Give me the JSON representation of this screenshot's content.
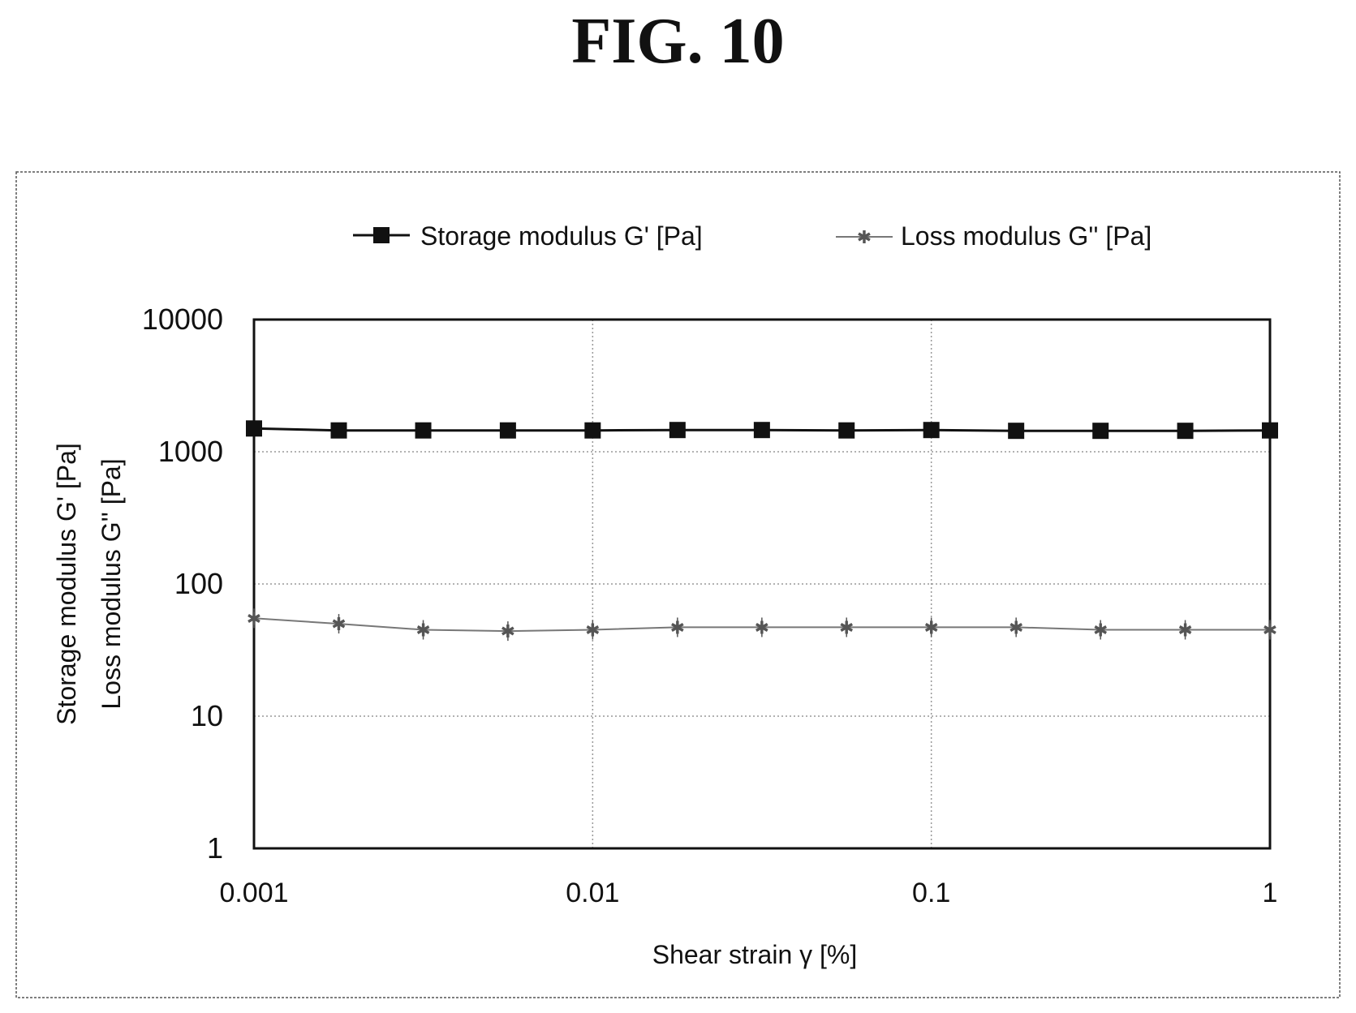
{
  "figure_label": "FIG. 10",
  "chart_data": {
    "type": "line",
    "x_scale": "log",
    "y_scale": "log",
    "xlim": [
      0.001,
      1
    ],
    "ylim": [
      1,
      10000
    ],
    "x_ticks": [
      "0.001",
      "0.01",
      "0.1",
      "1"
    ],
    "y_ticks": [
      "1",
      "10",
      "100",
      "1000",
      "10000"
    ],
    "xlabel": "Shear strain γ [%]",
    "ylabel_lines": [
      "Storage modulus G' [Pa]",
      "Loss modulus G'' [Pa]"
    ],
    "grid": true,
    "legend_position": "top",
    "x": [
      0.001,
      0.00178,
      0.00316,
      0.00562,
      0.01,
      0.0178,
      0.0316,
      0.0562,
      0.1,
      0.178,
      0.316,
      0.562,
      1
    ],
    "series": [
      {
        "name": "Storage modulus G' [Pa]",
        "marker": "square",
        "color": "#111111",
        "values": [
          1500,
          1450,
          1450,
          1450,
          1450,
          1460,
          1460,
          1450,
          1460,
          1440,
          1440,
          1440,
          1450
        ]
      },
      {
        "name": "Loss modulus G'' [Pa]",
        "marker": "asterisk",
        "color": "#777777",
        "values": [
          55,
          50,
          45,
          44,
          45,
          47,
          47,
          47,
          47,
          47,
          45,
          45,
          45
        ]
      }
    ]
  }
}
